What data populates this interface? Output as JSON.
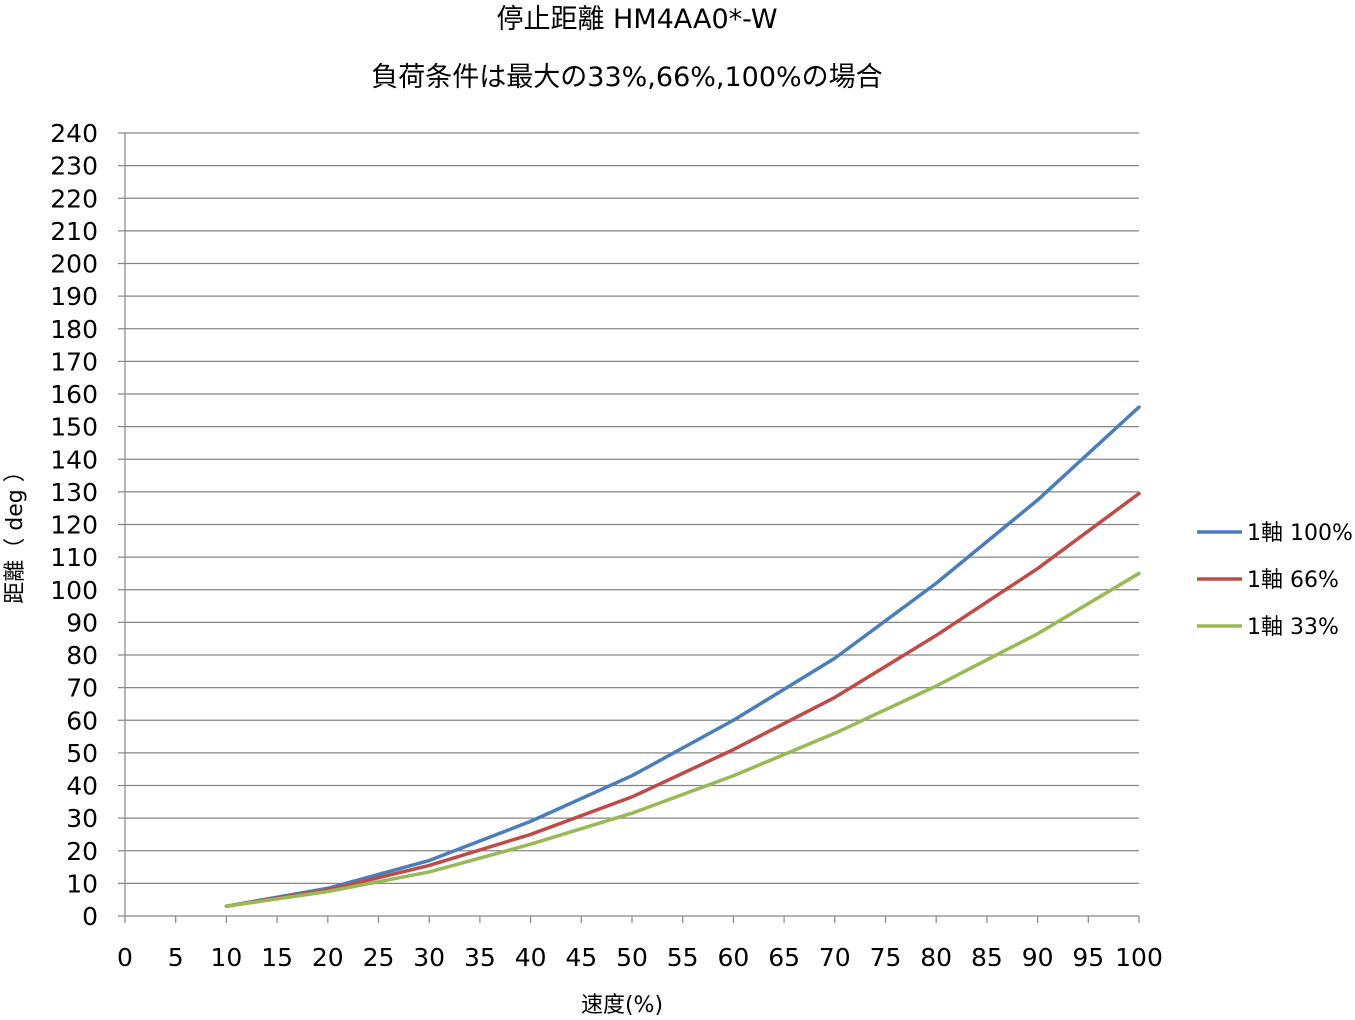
{
  "chart_data": {
    "type": "line",
    "title": "停止距離 HM4AA0*-W",
    "subtitle": "負荷条件は最大の33%,66%,100%の場合",
    "xlabel": "速度(%)",
    "ylabel": "距離（ deg ）",
    "xlim": [
      0,
      100
    ],
    "ylim": [
      0,
      240
    ],
    "x_ticks": [
      "0",
      "5",
      "10",
      "15",
      "20",
      "25",
      "30",
      "35",
      "40",
      "45",
      "50",
      "55",
      "60",
      "65",
      "70",
      "75",
      "80",
      "85",
      "90",
      "95",
      "100"
    ],
    "y_ticks": [
      "0",
      "10",
      "20",
      "30",
      "40",
      "50",
      "60",
      "70",
      "80",
      "90",
      "100",
      "110",
      "120",
      "130",
      "140",
      "150",
      "160",
      "170",
      "180",
      "190",
      "200",
      "210",
      "220",
      "230",
      "240"
    ],
    "grid": true,
    "legend_position": "right",
    "x": [
      10,
      20,
      30,
      40,
      50,
      60,
      70,
      80,
      90,
      100
    ],
    "series": [
      {
        "name": "1軸 100%",
        "color": "#4A7EBB",
        "values": [
          3,
          8.5,
          17,
          29,
          43,
          60,
          79,
          102,
          127.5,
          156
        ]
      },
      {
        "name": "1軸 66%",
        "color": "#BE4B48",
        "values": [
          3,
          8,
          15.5,
          25,
          36.5,
          51,
          67,
          86,
          106.5,
          129.5
        ]
      },
      {
        "name": "1軸 33%",
        "color": "#98B954",
        "values": [
          3,
          7.5,
          13.5,
          22,
          31.5,
          43,
          56,
          70.5,
          86.5,
          105
        ]
      }
    ]
  }
}
